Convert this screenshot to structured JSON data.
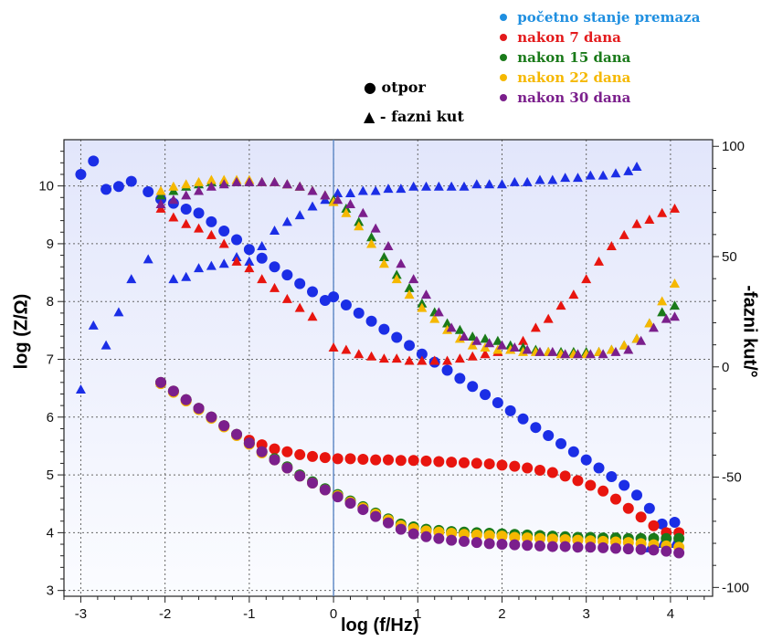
{
  "legend": {
    "items": [
      {
        "label": "početno stanje premaza",
        "color": "#1f8fe0"
      },
      {
        "label": "nakon 7 dana",
        "color": "#e31a1c"
      },
      {
        "label": "nakon 15 dana",
        "color": "#1a7a1a"
      },
      {
        "label": "nakon 22 dana",
        "color": "#f5b800"
      },
      {
        "label": "nakon 30 dana",
        "color": "#7b1f8c"
      }
    ],
    "marker_key": {
      "circle_label": "otpor",
      "triangle_label": "- fazni kut"
    }
  },
  "chart_data": {
    "type": "scatter",
    "xlabel": "log (f/Hz)",
    "ylabel": "log (Z/Ω)",
    "y2label": "-fazni kut/°",
    "xlim": [
      -3.2,
      4.5
    ],
    "ylim": [
      2.9,
      10.8
    ],
    "y2lim": [
      -104,
      103
    ],
    "xticks": [
      -3,
      -2,
      -1,
      0,
      1,
      2,
      3,
      4
    ],
    "yticks": [
      3,
      4,
      5,
      6,
      7,
      8,
      9,
      10
    ],
    "y2ticks": [
      -100,
      -50,
      0,
      50,
      100
    ],
    "grid": true,
    "reference_line_x": 0,
    "colors": {
      "initial": "#1b2ee6",
      "d7": "#e8150f",
      "d15": "#1a7a1a",
      "d22": "#f5b800",
      "d30": "#7b1f8c"
    },
    "series": [
      {
        "key": "initial",
        "marker": "circle",
        "axis": "left",
        "x": [
          -3.0,
          -2.85,
          -2.7,
          -2.55,
          -2.4,
          -2.2,
          -2.05,
          -1.9,
          -1.75,
          -1.6,
          -1.45,
          -1.3,
          -1.15,
          -1.0,
          -0.85,
          -0.7,
          -0.55,
          -0.4,
          -0.25,
          -0.1,
          0.0,
          0.15,
          0.3,
          0.45,
          0.6,
          0.75,
          0.9,
          1.05,
          1.2,
          1.35,
          1.5,
          1.65,
          1.8,
          1.95,
          2.1,
          2.25,
          2.4,
          2.55,
          2.7,
          2.85,
          3.0,
          3.15,
          3.3,
          3.45,
          3.6,
          3.75,
          3.9,
          4.05
        ],
        "y": [
          10.2,
          10.43,
          9.94,
          9.99,
          10.08,
          9.9,
          9.77,
          9.7,
          9.6,
          9.53,
          9.38,
          9.22,
          9.07,
          8.9,
          8.75,
          8.6,
          8.46,
          8.31,
          8.17,
          8.02,
          8.08,
          7.94,
          7.8,
          7.66,
          7.52,
          7.38,
          7.24,
          7.09,
          6.95,
          6.81,
          6.67,
          6.53,
          6.39,
          6.25,
          6.11,
          5.97,
          5.82,
          5.68,
          5.54,
          5.4,
          5.26,
          5.12,
          4.97,
          4.82,
          4.65,
          4.42,
          4.15,
          4.18
        ]
      },
      {
        "key": "initial",
        "marker": "triangle",
        "axis": "right",
        "x": [
          -3.0,
          -2.85,
          -2.7,
          -2.55,
          -2.4,
          -2.2,
          -2.05,
          -1.9,
          -1.75,
          -1.6,
          -1.45,
          -1.3,
          -1.15,
          -1.0,
          -0.85,
          -0.7,
          -0.55,
          -0.4,
          -0.25,
          -0.1,
          0.05,
          0.2,
          0.35,
          0.5,
          0.65,
          0.8,
          0.95,
          1.1,
          1.25,
          1.4,
          1.55,
          1.7,
          1.85,
          2.0,
          2.15,
          2.3,
          2.45,
          2.6,
          2.75,
          2.9,
          3.05,
          3.2,
          3.35,
          3.5,
          3.6,
          3.75,
          3.9,
          4.05
        ],
        "y": [
          -10,
          19,
          10,
          25,
          40,
          49,
          -7,
          40,
          41,
          45,
          46,
          47,
          50,
          48,
          55,
          62,
          66,
          69,
          73,
          76,
          79,
          79,
          80,
          80,
          81,
          81,
          82,
          82,
          82,
          82,
          82,
          83,
          83,
          83,
          84,
          84,
          85,
          85,
          86,
          86,
          87,
          87,
          88,
          89,
          91,
          -82,
          -80,
          -80
        ]
      },
      {
        "key": "d7",
        "marker": "circle",
        "axis": "left",
        "x": [
          -2.05,
          -1.9,
          -1.75,
          -1.6,
          -1.45,
          -1.3,
          -1.15,
          -1.0,
          -0.85,
          -0.7,
          -0.55,
          -0.4,
          -0.25,
          -0.1,
          0.05,
          0.2,
          0.35,
          0.5,
          0.65,
          0.8,
          0.95,
          1.1,
          1.25,
          1.4,
          1.55,
          1.7,
          1.85,
          2.0,
          2.15,
          2.3,
          2.45,
          2.6,
          2.75,
          2.9,
          3.05,
          3.2,
          3.35,
          3.5,
          3.65,
          3.8,
          3.95,
          4.1
        ],
        "y": [
          6.6,
          6.45,
          6.3,
          6.15,
          6.0,
          5.85,
          5.7,
          5.6,
          5.52,
          5.45,
          5.4,
          5.35,
          5.32,
          5.3,
          5.28,
          5.28,
          5.27,
          5.26,
          5.26,
          5.25,
          5.25,
          5.24,
          5.23,
          5.22,
          5.21,
          5.2,
          5.19,
          5.17,
          5.15,
          5.12,
          5.08,
          5.04,
          4.98,
          4.9,
          4.82,
          4.72,
          4.58,
          4.42,
          4.27,
          4.12,
          4.0,
          4.0
        ]
      },
      {
        "key": "d7",
        "marker": "triangle",
        "axis": "right",
        "x": [
          -2.05,
          -1.9,
          -1.75,
          -1.6,
          -1.45,
          -1.3,
          -1.15,
          -1.0,
          -0.85,
          -0.7,
          -0.55,
          -0.4,
          -0.25,
          0.0,
          0.15,
          0.3,
          0.45,
          0.6,
          0.75,
          0.9,
          1.05,
          1.2,
          1.35,
          1.5,
          1.65,
          1.8,
          1.95,
          2.1,
          2.25,
          2.4,
          2.55,
          2.7,
          2.85,
          3.0,
          3.15,
          3.3,
          3.45,
          3.6,
          3.75,
          3.9,
          4.05
        ],
        "y": [
          72,
          68,
          65,
          63,
          60,
          56,
          48,
          45,
          40,
          36,
          31,
          27,
          23,
          9,
          8,
          6,
          5,
          4,
          4,
          3,
          3,
          3,
          3,
          4,
          5,
          6,
          7,
          8,
          12,
          18,
          22,
          28,
          33,
          40,
          48,
          55,
          60,
          65,
          67,
          70,
          72
        ]
      },
      {
        "key": "d15",
        "marker": "circle",
        "axis": "left",
        "x": [
          -2.05,
          -1.9,
          -1.75,
          -1.6,
          -1.45,
          -1.3,
          -1.15,
          -1.0,
          -0.85,
          -0.7,
          -0.55,
          -0.4,
          -0.25,
          -0.1,
          0.05,
          0.2,
          0.35,
          0.5,
          0.65,
          0.8,
          0.95,
          1.1,
          1.25,
          1.4,
          1.55,
          1.7,
          1.85,
          2.0,
          2.15,
          2.3,
          2.45,
          2.6,
          2.75,
          2.9,
          3.05,
          3.2,
          3.35,
          3.5,
          3.65,
          3.8,
          3.95,
          4.1
        ],
        "y": [
          6.6,
          6.45,
          6.3,
          6.15,
          6.0,
          5.85,
          5.7,
          5.55,
          5.4,
          5.28,
          5.14,
          5.0,
          4.88,
          4.76,
          4.66,
          4.55,
          4.45,
          4.34,
          4.24,
          4.15,
          4.1,
          4.06,
          4.04,
          4.02,
          4.01,
          4.0,
          3.99,
          3.98,
          3.97,
          3.96,
          3.95,
          3.94,
          3.93,
          3.92,
          3.92,
          3.91,
          3.91,
          3.9,
          3.9,
          3.9,
          3.9,
          3.9
        ]
      },
      {
        "key": "d15",
        "marker": "triangle",
        "axis": "right",
        "x": [
          -2.05,
          -1.9,
          -1.75,
          -1.6,
          -1.45,
          -1.3,
          -1.15,
          -1.0,
          -0.85,
          -0.7,
          -0.55,
          -0.4,
          -0.25,
          -0.1,
          0.0,
          0.15,
          0.3,
          0.45,
          0.6,
          0.75,
          0.9,
          1.05,
          1.2,
          1.35,
          1.5,
          1.65,
          1.8,
          1.95,
          2.1,
          2.25,
          2.4,
          2.55,
          2.7,
          2.85,
          3.0,
          3.15,
          3.3,
          3.45,
          3.6,
          3.75,
          3.9,
          4.05
        ],
        "y": [
          78,
          80,
          82,
          83,
          84,
          84,
          84,
          84,
          84,
          84,
          83,
          82,
          80,
          78,
          76,
          72,
          66,
          59,
          50,
          42,
          36,
          29,
          25,
          20,
          17,
          14,
          13,
          12,
          10,
          9,
          8,
          7,
          7,
          7,
          7,
          7,
          8,
          10,
          13,
          20,
          25,
          28
        ]
      },
      {
        "key": "d22",
        "marker": "circle",
        "axis": "left",
        "x": [
          -2.05,
          -1.9,
          -1.75,
          -1.6,
          -1.45,
          -1.3,
          -1.15,
          -1.0,
          -0.85,
          -0.7,
          -0.55,
          -0.4,
          -0.25,
          -0.1,
          0.05,
          0.2,
          0.35,
          0.5,
          0.65,
          0.8,
          0.95,
          1.1,
          1.25,
          1.4,
          1.55,
          1.7,
          1.85,
          2.0,
          2.15,
          2.3,
          2.45,
          2.6,
          2.75,
          2.9,
          3.05,
          3.2,
          3.35,
          3.5,
          3.65,
          3.8,
          3.95,
          4.1
        ],
        "y": [
          6.58,
          6.43,
          6.28,
          6.13,
          5.98,
          5.83,
          5.68,
          5.53,
          5.38,
          5.26,
          5.12,
          4.98,
          4.86,
          4.74,
          4.64,
          4.53,
          4.43,
          4.32,
          4.22,
          4.12,
          4.07,
          4.03,
          4.01,
          3.99,
          3.97,
          3.96,
          3.95,
          3.94,
          3.92,
          3.91,
          3.9,
          3.89,
          3.88,
          3.87,
          3.86,
          3.85,
          3.84,
          3.83,
          3.81,
          3.79,
          3.77,
          3.75
        ]
      },
      {
        "key": "d22",
        "marker": "triangle",
        "axis": "right",
        "x": [
          -2.05,
          -1.9,
          -1.75,
          -1.6,
          -1.45,
          -1.3,
          -1.15,
          -1.0,
          -0.85,
          -0.7,
          -0.55,
          -0.4,
          -0.25,
          -0.1,
          0.0,
          0.15,
          0.3,
          0.45,
          0.6,
          0.75,
          0.9,
          1.05,
          1.2,
          1.35,
          1.5,
          1.65,
          1.8,
          1.95,
          2.1,
          2.25,
          2.4,
          2.55,
          2.7,
          2.85,
          3.0,
          3.15,
          3.3,
          3.45,
          3.6,
          3.75,
          3.9,
          4.05
        ],
        "y": [
          80,
          82,
          83,
          84,
          85,
          85,
          85,
          85,
          84,
          84,
          83,
          82,
          80,
          78,
          75,
          70,
          64,
          56,
          47,
          40,
          33,
          27,
          22,
          17,
          13,
          10,
          9,
          8,
          8,
          7,
          7,
          7,
          6,
          6,
          6,
          7,
          8,
          10,
          13,
          20,
          30,
          38
        ]
      },
      {
        "key": "d30",
        "marker": "circle",
        "axis": "left",
        "x": [
          -2.05,
          -1.9,
          -1.75,
          -1.6,
          -1.45,
          -1.3,
          -1.15,
          -1.0,
          -0.85,
          -0.7,
          -0.55,
          -0.4,
          -0.25,
          -0.1,
          0.05,
          0.2,
          0.35,
          0.5,
          0.65,
          0.8,
          0.95,
          1.1,
          1.25,
          1.4,
          1.55,
          1.7,
          1.85,
          2.0,
          2.15,
          2.3,
          2.45,
          2.6,
          2.75,
          2.9,
          3.05,
          3.2,
          3.35,
          3.5,
          3.65,
          3.8,
          3.95,
          4.1
        ],
        "y": [
          6.6,
          6.45,
          6.3,
          6.15,
          6.0,
          5.85,
          5.7,
          5.55,
          5.4,
          5.26,
          5.12,
          4.98,
          4.86,
          4.74,
          4.62,
          4.51,
          4.4,
          4.28,
          4.17,
          4.06,
          3.98,
          3.93,
          3.9,
          3.87,
          3.85,
          3.83,
          3.81,
          3.8,
          3.79,
          3.78,
          3.77,
          3.76,
          3.76,
          3.75,
          3.75,
          3.74,
          3.73,
          3.72,
          3.71,
          3.7,
          3.68,
          3.65
        ]
      },
      {
        "key": "d30",
        "marker": "triangle",
        "axis": "right",
        "x": [
          -2.05,
          -1.9,
          -1.75,
          -1.6,
          -1.45,
          -1.3,
          -1.15,
          -1.0,
          -0.85,
          -0.7,
          -0.55,
          -0.4,
          -0.25,
          -0.1,
          0.05,
          0.2,
          0.35,
          0.5,
          0.65,
          0.8,
          0.95,
          1.1,
          1.25,
          1.4,
          1.55,
          1.7,
          1.85,
          2.0,
          2.15,
          2.3,
          2.45,
          2.6,
          2.75,
          2.9,
          3.05,
          3.2,
          3.35,
          3.5,
          3.65,
          3.8,
          3.95,
          4.05
        ],
        "y": [
          74,
          76,
          78,
          80,
          82,
          83,
          84,
          84,
          84,
          84,
          83,
          82,
          80,
          78,
          76,
          74,
          70,
          63,
          55,
          47,
          40,
          33,
          25,
          18,
          14,
          12,
          11,
          10,
          9,
          8,
          7,
          7,
          6,
          6,
          6,
          6,
          7,
          8,
          12,
          18,
          22,
          23
        ]
      }
    ]
  }
}
